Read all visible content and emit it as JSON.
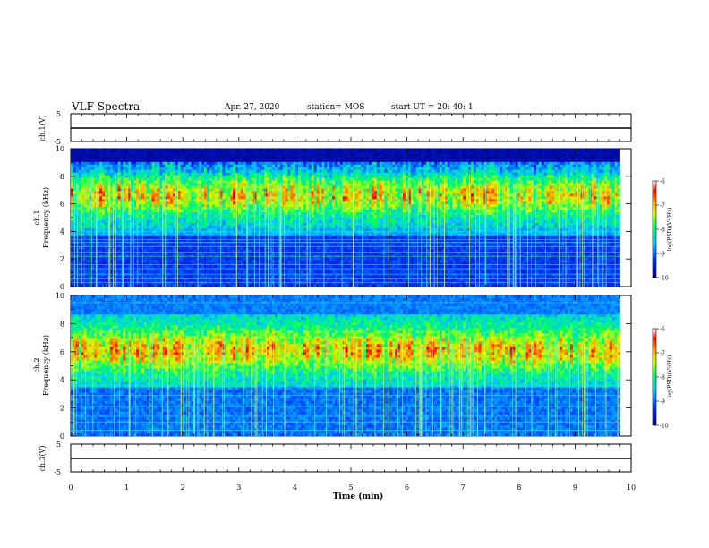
{
  "header": {
    "title": "VLF Spectra",
    "date": "Apr. 27, 2020",
    "station": "station= MOS",
    "start": "start  UT =   20: 40: 1"
  },
  "chart_data": [
    {
      "type": "line",
      "ylabel": "ch.1(V)",
      "ylim": [
        -5,
        5
      ],
      "yticks": [
        "5",
        "-5"
      ],
      "xlim": [
        0,
        10
      ],
      "series": [
        {
          "values_const": 0
        }
      ]
    },
    {
      "type": "heatmap",
      "ylabel_top": "ch.1",
      "ylabel": "Frequency (kHz)",
      "ylim": [
        0,
        10
      ],
      "yticks": [
        "0",
        "2",
        "4",
        "6",
        "8",
        "10"
      ],
      "xlim": [
        0,
        9.8
      ],
      "colorbar": {
        "label": "log(PSD)(V²/Hz)",
        "range": [
          -10,
          -6
        ],
        "ticks": [
          "-6",
          "-7",
          "-8",
          "-9",
          "-10"
        ]
      }
    },
    {
      "type": "heatmap",
      "ylabel_top": "ch.2",
      "ylabel": "Frequency (kHz)",
      "ylim": [
        0,
        10
      ],
      "yticks": [
        "0",
        "2",
        "4",
        "6",
        "8",
        "10"
      ],
      "xlim": [
        0,
        9.8
      ],
      "colorbar": {
        "label": "log(PSD)(V²/Hz)",
        "range": [
          -10,
          -6
        ],
        "ticks": [
          "-6",
          "-7",
          "-8",
          "-9",
          "-10"
        ]
      }
    },
    {
      "type": "line",
      "ylabel": "ch.3(V)",
      "ylim": [
        -5,
        5
      ],
      "yticks": [
        "5",
        "-5"
      ],
      "xlim": [
        0,
        10
      ],
      "xlabel": "Time (min)",
      "xticks": [
        "0",
        "1",
        "2",
        "3",
        "4",
        "5",
        "6",
        "7",
        "8",
        "9",
        "10"
      ],
      "series": [
        {
          "values_const": 0
        }
      ]
    }
  ]
}
